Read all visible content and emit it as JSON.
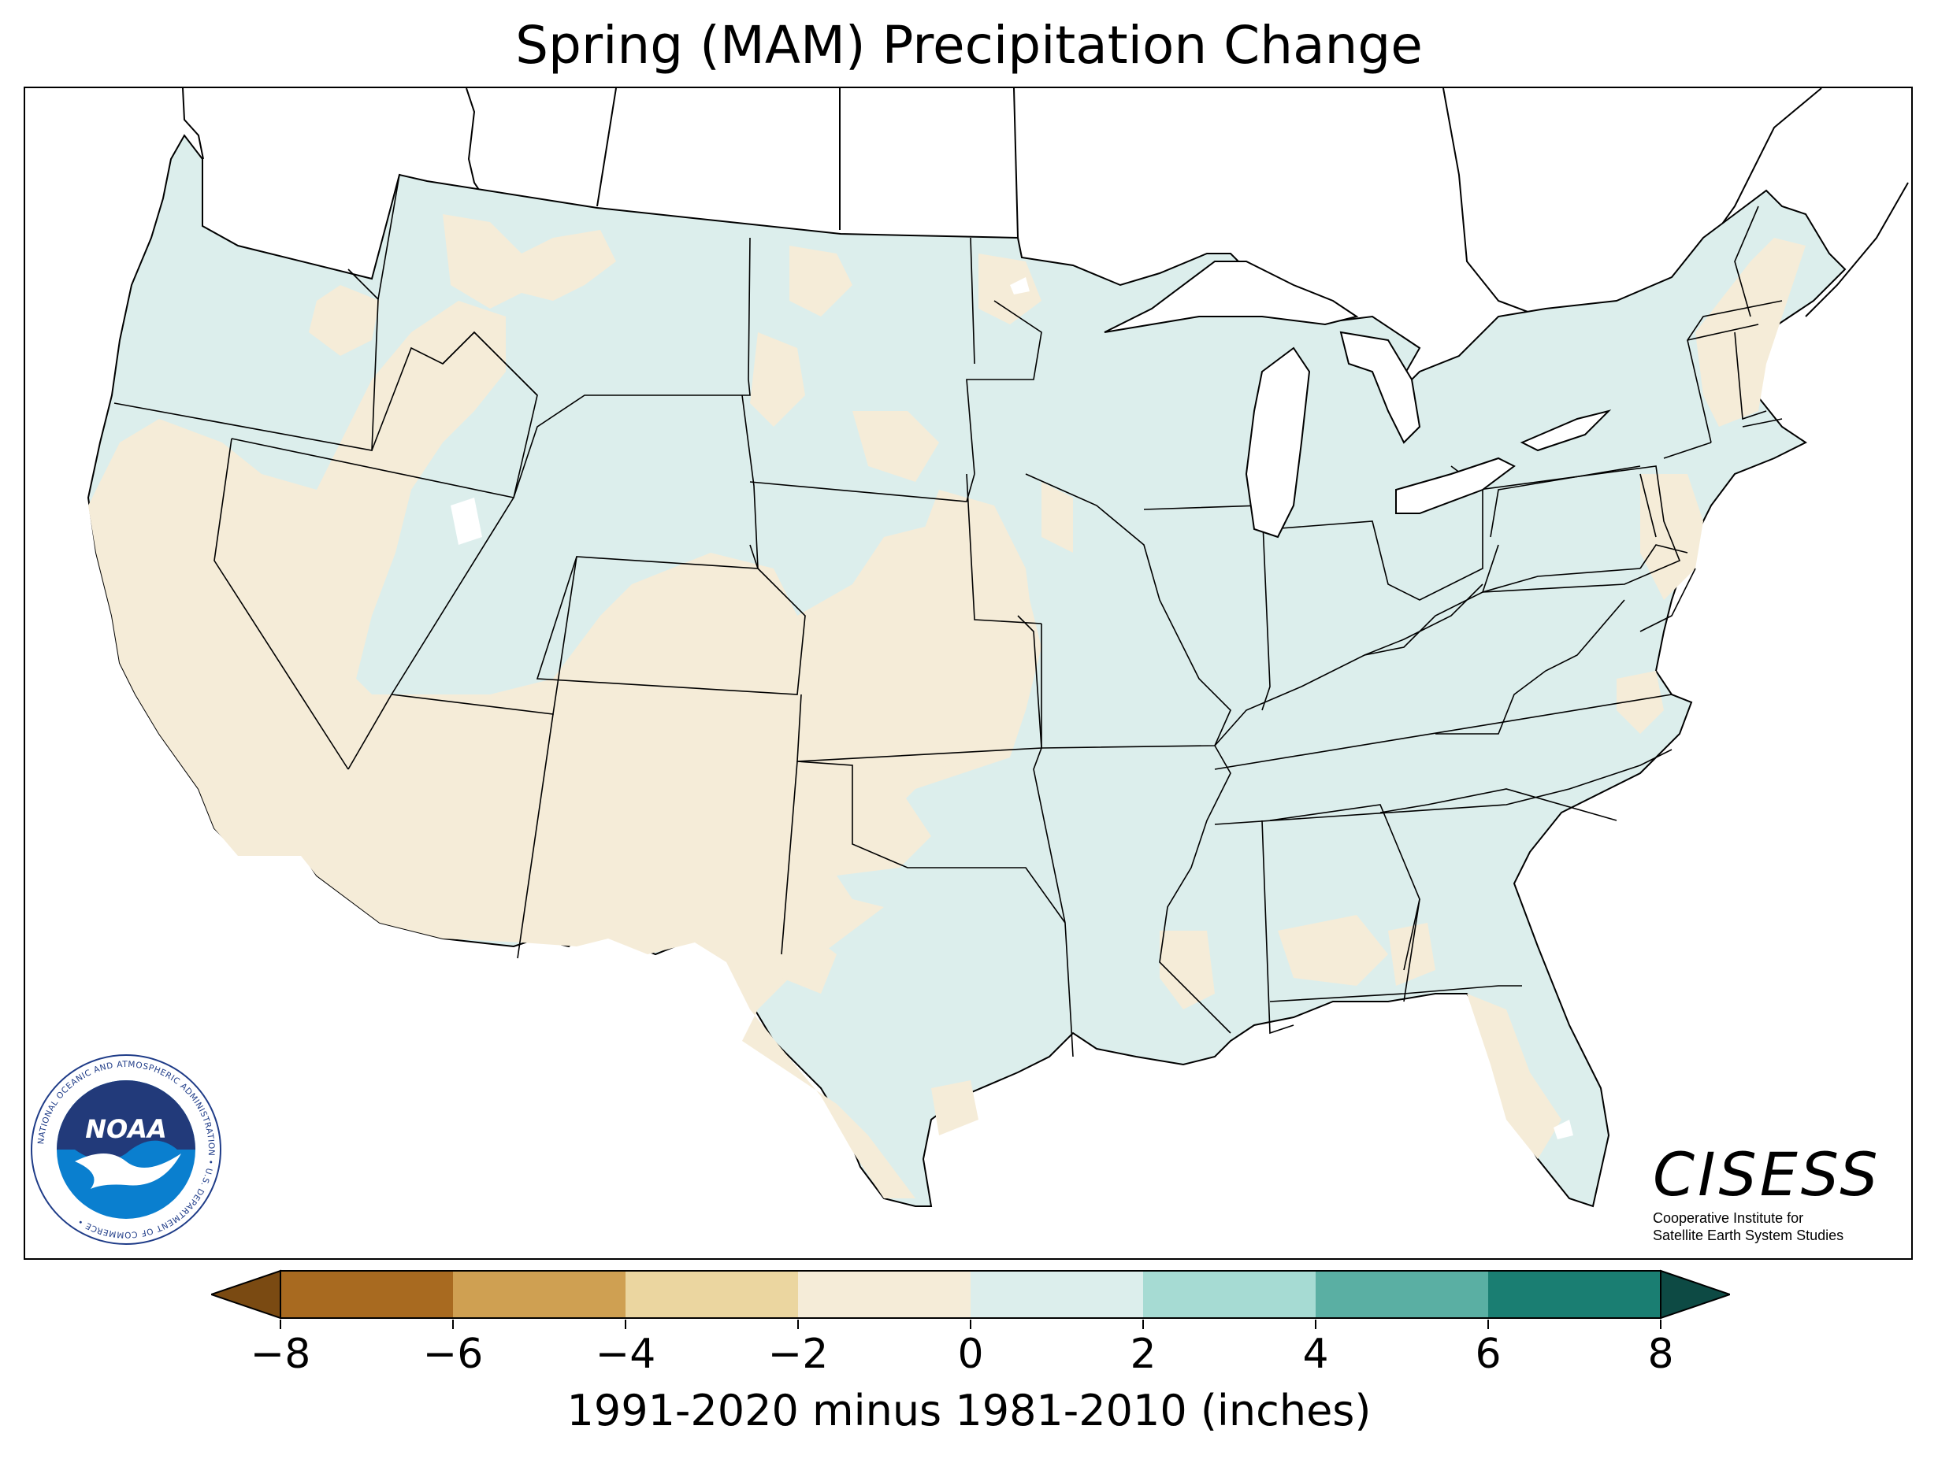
{
  "title": "Spring (MAM) Precipitation Change",
  "colorbar": {
    "label": "1991-2020 minus 1981-2010 (inches)",
    "ticks": [
      "−8",
      "−6",
      "−4",
      "−2",
      "0",
      "2",
      "4",
      "6",
      "8"
    ],
    "bins": [
      {
        "range": "-8 to -6",
        "color": "#a86a20"
      },
      {
        "range": "-6 to -4",
        "color": "#cfa052"
      },
      {
        "range": "-4 to -2",
        "color": "#ebd6a0"
      },
      {
        "range": "-2 to 0",
        "color": "#f5ecd8"
      },
      {
        "range": "0 to 2",
        "color": "#dceeec"
      },
      {
        "range": "2 to 4",
        "color": "#a6dbd3"
      },
      {
        "range": "4 to 6",
        "color": "#5aafa3"
      },
      {
        "range": "6 to 8",
        "color": "#1a7e72"
      }
    ],
    "under_color": "#7a4a12",
    "over_color": "#0d4a44"
  },
  "map": {
    "region": "contiguous-united-states",
    "dominant_west": "-2 to 0",
    "dominant_east": "0 to 2"
  },
  "logos": {
    "noaa": {
      "text": "NOAA",
      "ring": "NATIONAL OCEANIC AND ATMOSPHERIC ADMINISTRATION • U.S. DEPARTMENT OF COMMERCE •"
    },
    "cisess": {
      "name": "CISESS",
      "subtitle_line1": "Cooperative Institute for",
      "subtitle_line2": "Satellite Earth System Studies"
    }
  }
}
